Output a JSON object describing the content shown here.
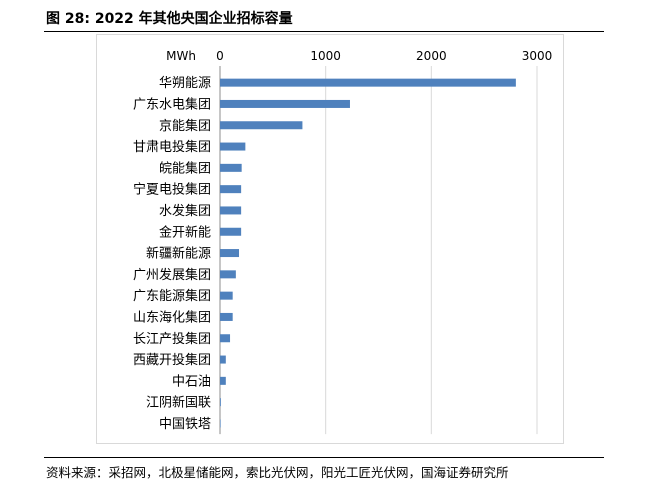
{
  "figure": {
    "title": "图 28:  2022 年其他央国企业招标容量",
    "source": "资料来源：采招网，北极星储能网，索比光伏网，阳光工匠光伏网，国海证券研究所"
  },
  "chart_data": {
    "type": "bar",
    "orientation": "horizontal",
    "unit_label": "MWh",
    "categories": [
      "华朔能源",
      "广东水电集团",
      "京能集团",
      "甘肃电投集团",
      "皖能集团",
      "宁夏电投集团",
      "水发集团",
      "金开新能",
      "新疆新能源",
      "广州发展集团",
      "广东能源集团",
      "山东海化集团",
      "长江产投集团",
      "西藏开投集团",
      "中石油",
      "江阴新国联",
      "中国铁塔"
    ],
    "values": [
      2800,
      1230,
      780,
      240,
      205,
      200,
      200,
      200,
      180,
      150,
      120,
      120,
      95,
      55,
      55,
      8,
      3
    ],
    "xlim": [
      0,
      3000
    ],
    "xticks": [
      0,
      1000,
      2000,
      3000
    ],
    "grid": true,
    "bar_color": "#4f81bd",
    "grid_color": "#d9d9d9",
    "legend": "none"
  }
}
